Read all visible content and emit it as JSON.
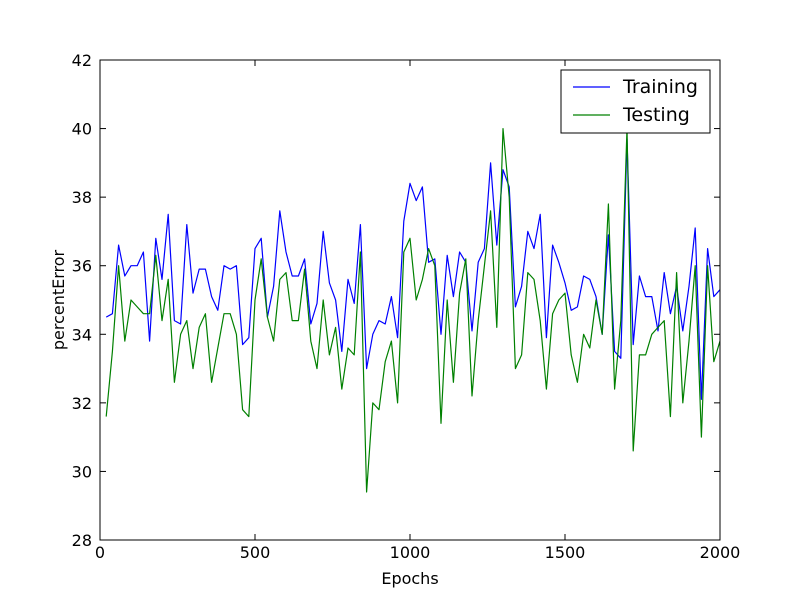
{
  "chart_data": {
    "type": "line",
    "title": "",
    "xlabel": "Epochs",
    "ylabel": "percentError",
    "xlim": [
      0,
      2000
    ],
    "ylim": [
      28,
      42
    ],
    "xticks": [
      0,
      500,
      1000,
      1500,
      2000
    ],
    "yticks": [
      28,
      30,
      32,
      34,
      36,
      38,
      40,
      42
    ],
    "grid": false,
    "legend_position": "top-right",
    "x": [
      20,
      40,
      60,
      80,
      100,
      120,
      140,
      160,
      180,
      200,
      220,
      240,
      260,
      280,
      300,
      320,
      340,
      360,
      380,
      400,
      420,
      440,
      460,
      480,
      500,
      520,
      540,
      560,
      580,
      600,
      620,
      640,
      660,
      680,
      700,
      720,
      740,
      760,
      780,
      800,
      820,
      840,
      860,
      880,
      900,
      920,
      940,
      960,
      980,
      1000,
      1020,
      1040,
      1060,
      1080,
      1100,
      1120,
      1140,
      1160,
      1180,
      1200,
      1220,
      1240,
      1260,
      1280,
      1300,
      1320,
      1340,
      1360,
      1380,
      1400,
      1420,
      1440,
      1460,
      1480,
      1500,
      1520,
      1540,
      1560,
      1580,
      1600,
      1620,
      1640,
      1660,
      1680,
      1700,
      1720,
      1740,
      1760,
      1780,
      1800,
      1820,
      1840,
      1860,
      1880,
      1900,
      1920,
      1940,
      1960,
      1980,
      2000
    ],
    "series": [
      {
        "name": "Training",
        "color": "#0000ff",
        "values": [
          34.5,
          34.6,
          36.6,
          35.7,
          36.0,
          36.0,
          36.4,
          33.8,
          36.8,
          35.6,
          37.5,
          34.4,
          34.3,
          37.2,
          35.2,
          35.9,
          35.9,
          35.1,
          34.7,
          36.0,
          35.9,
          36.0,
          33.7,
          33.9,
          36.5,
          36.8,
          34.5,
          35.4,
          37.6,
          36.4,
          35.7,
          35.7,
          36.2,
          34.3,
          34.9,
          37.0,
          35.5,
          35.0,
          33.5,
          35.6,
          34.9,
          37.2,
          33.0,
          34.0,
          34.4,
          34.3,
          35.1,
          33.9,
          37.3,
          38.4,
          37.9,
          38.3,
          36.1,
          36.2,
          34.0,
          36.3,
          35.1,
          36.4,
          36.1,
          34.1,
          36.1,
          36.5,
          39.0,
          36.6,
          38.8,
          38.3,
          34.8,
          35.4,
          37.0,
          36.5,
          37.5,
          33.9,
          36.6,
          36.1,
          35.5,
          34.7,
          34.8,
          35.7,
          35.6,
          35.1,
          34.0,
          36.9,
          33.5,
          33.3,
          39.7,
          33.7,
          35.7,
          35.1,
          35.1,
          34.1,
          35.8,
          34.6,
          35.4,
          34.1,
          35.4,
          37.1,
          32.1,
          36.5,
          35.1,
          35.3
        ]
      },
      {
        "name": "Testing",
        "color": "#008000",
        "values": [
          31.6,
          33.5,
          36.0,
          33.8,
          35.0,
          34.8,
          34.6,
          34.6,
          36.3,
          34.4,
          35.6,
          32.6,
          34.0,
          34.4,
          33.0,
          34.2,
          34.6,
          32.6,
          33.6,
          34.6,
          34.6,
          34.0,
          31.8,
          31.6,
          35.0,
          36.2,
          34.5,
          33.8,
          35.6,
          35.8,
          34.4,
          34.4,
          35.9,
          33.8,
          33.0,
          35.0,
          33.4,
          34.2,
          32.4,
          33.6,
          33.4,
          36.4,
          29.4,
          32.0,
          31.8,
          33.2,
          33.8,
          32.0,
          36.4,
          36.8,
          35.0,
          35.6,
          36.5,
          36.0,
          31.4,
          35.0,
          32.6,
          35.2,
          36.2,
          32.2,
          34.4,
          36.0,
          37.6,
          34.2,
          40.0,
          38.0,
          33.0,
          33.4,
          35.8,
          35.6,
          34.4,
          32.4,
          34.6,
          35.0,
          35.2,
          33.4,
          32.6,
          34.0,
          33.6,
          35.0,
          34.0,
          37.8,
          32.4,
          34.4,
          40.0,
          30.6,
          33.4,
          33.4,
          34.0,
          34.2,
          34.4,
          31.6,
          35.8,
          32.0,
          33.8,
          36.0,
          31.0,
          36.0,
          33.2,
          33.8
        ]
      }
    ]
  }
}
